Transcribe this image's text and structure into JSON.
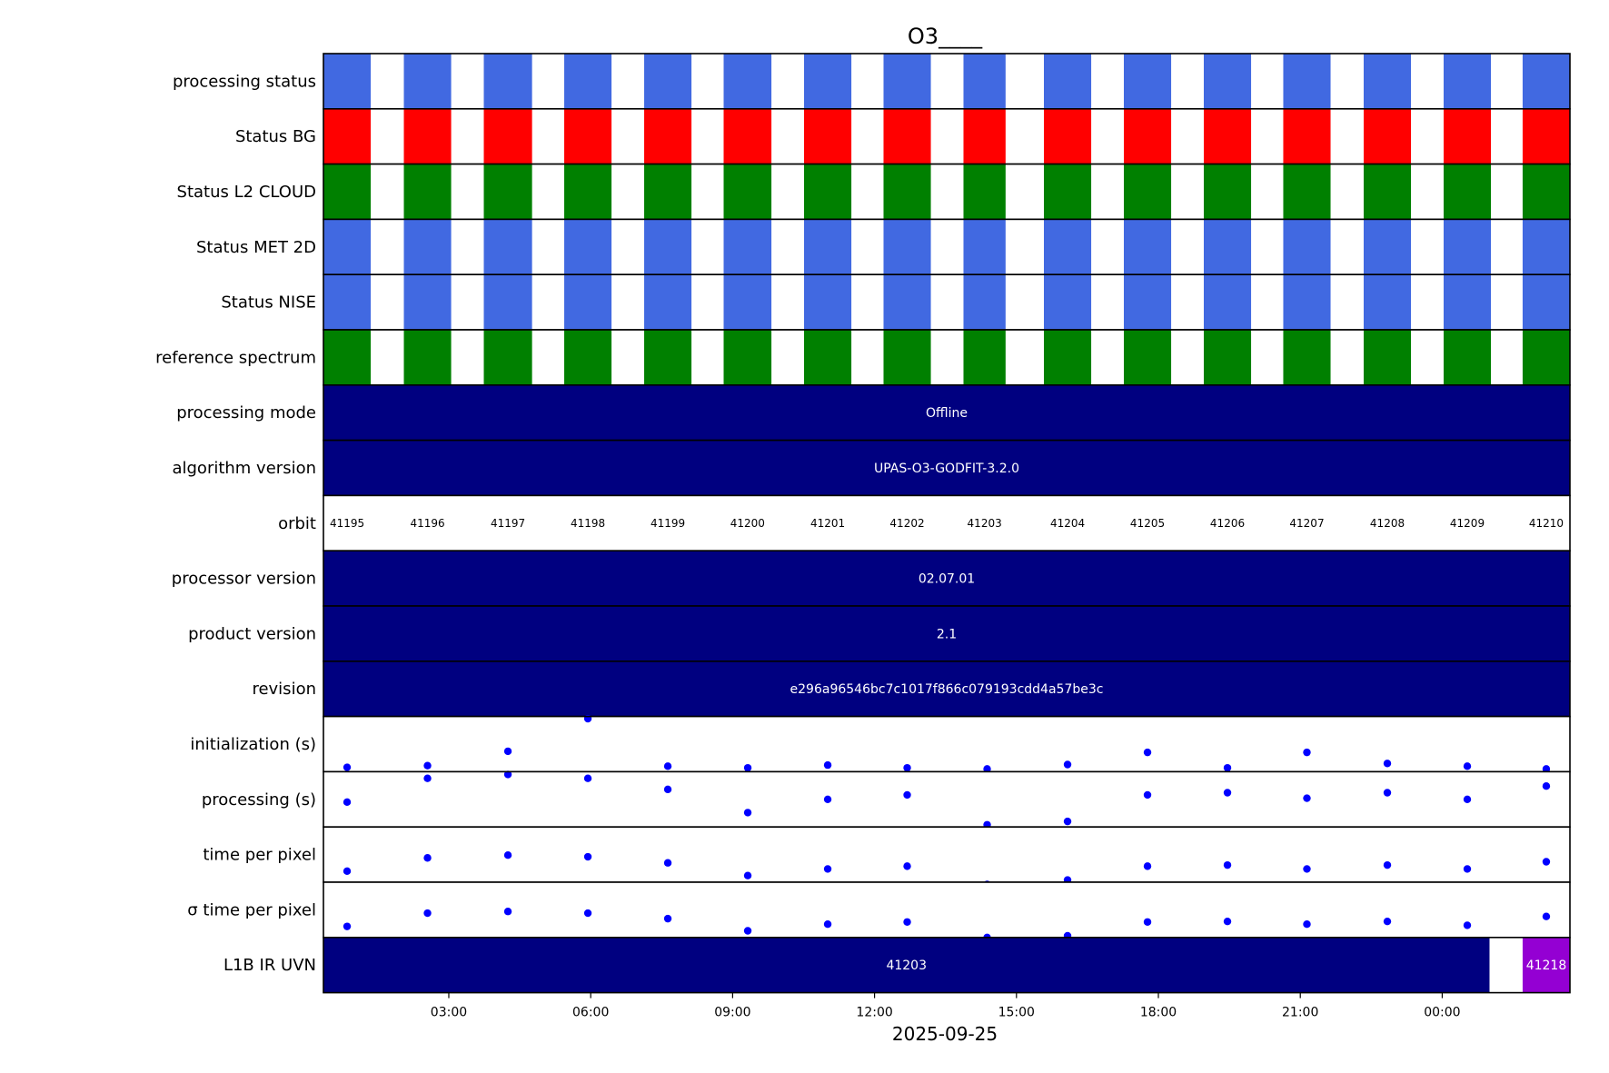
{
  "chart_data": {
    "type": "timeline",
    "title": "O3____",
    "xlabel": "2025-09-25",
    "x_ticks": [
      "03:00",
      "06:00",
      "09:00",
      "12:00",
      "15:00",
      "18:00",
      "21:00",
      "00:00"
    ],
    "x_tick_hours": [
      3,
      6,
      9,
      12,
      15,
      18,
      21,
      24
    ],
    "xlim_hours": [
      0.35,
      26.7
    ],
    "orbits": [
      {
        "id": "41195",
        "start": 0.35,
        "end": 1.35
      },
      {
        "id": "41196",
        "start": 2.05,
        "end": 3.05
      },
      {
        "id": "41197",
        "start": 3.74,
        "end": 4.76
      },
      {
        "id": "41198",
        "start": 5.44,
        "end": 6.44
      },
      {
        "id": "41199",
        "start": 7.13,
        "end": 8.13
      },
      {
        "id": "41200",
        "start": 8.81,
        "end": 9.82
      },
      {
        "id": "41201",
        "start": 10.51,
        "end": 11.51
      },
      {
        "id": "41202",
        "start": 12.19,
        "end": 13.19
      },
      {
        "id": "41203",
        "start": 13.88,
        "end": 14.77
      },
      {
        "id": "41204",
        "start": 15.58,
        "end": 16.58
      },
      {
        "id": "41205",
        "start": 17.27,
        "end": 18.27
      },
      {
        "id": "41206",
        "start": 18.96,
        "end": 19.96
      },
      {
        "id": "41207",
        "start": 20.64,
        "end": 21.64
      },
      {
        "id": "41208",
        "start": 22.34,
        "end": 23.34
      },
      {
        "id": "41209",
        "start": 24.03,
        "end": 25.03
      },
      {
        "id": "41210",
        "start": 25.7,
        "end": 26.7
      }
    ],
    "rows": [
      {
        "label": "processing status",
        "kind": "orbit_blocks",
        "color": "#4169e1"
      },
      {
        "label": "Status BG",
        "kind": "orbit_blocks",
        "color": "#ff0000"
      },
      {
        "label": "Status L2  CLOUD",
        "kind": "orbit_blocks",
        "color": "#008000"
      },
      {
        "label": "Status MET 2D",
        "kind": "orbit_blocks",
        "color": "#4169e1"
      },
      {
        "label": "Status NISE",
        "kind": "orbit_blocks",
        "color": "#4169e1"
      },
      {
        "label": "reference spectrum",
        "kind": "orbit_blocks",
        "color": "#008000"
      },
      {
        "label": "processing mode",
        "kind": "band",
        "color": "#000080",
        "segments": [
          {
            "start": 0.35,
            "end": 26.7,
            "text": "Offline",
            "color": "#000080"
          }
        ]
      },
      {
        "label": "algorithm version",
        "kind": "band",
        "color": "#000080",
        "segments": [
          {
            "start": 0.35,
            "end": 26.7,
            "text": "UPAS-O3-GODFIT-3.2.0",
            "color": "#000080"
          }
        ]
      },
      {
        "label": "orbit",
        "kind": "orbit_labels"
      },
      {
        "label": "processor version",
        "kind": "band",
        "color": "#000080",
        "segments": [
          {
            "start": 0.35,
            "end": 26.7,
            "text": "02.07.01",
            "color": "#000080"
          }
        ]
      },
      {
        "label": "product version",
        "kind": "band",
        "color": "#000080",
        "segments": [
          {
            "start": 0.35,
            "end": 26.7,
            "text": "2.1",
            "color": "#000080"
          }
        ]
      },
      {
        "label": "revision",
        "kind": "band",
        "color": "#000080",
        "segments": [
          {
            "start": 0.35,
            "end": 26.7,
            "text": "e296a96546bc7c1017f866c079193cdd4a57be3c",
            "color": "#000080"
          }
        ]
      },
      {
        "label": "initialization (s)",
        "kind": "scatter",
        "color": "#0000ff",
        "ylim": [
          0,
          1
        ],
        "points": [
          [
            0.85,
            0.08
          ],
          [
            2.55,
            0.11
          ],
          [
            4.25,
            0.37
          ],
          [
            5.94,
            0.96
          ],
          [
            7.63,
            0.1
          ],
          [
            9.32,
            0.07
          ],
          [
            11.01,
            0.12
          ],
          [
            12.69,
            0.07
          ],
          [
            14.38,
            0.05
          ],
          [
            16.08,
            0.13
          ],
          [
            17.77,
            0.35
          ],
          [
            19.46,
            0.07
          ],
          [
            21.14,
            0.35
          ],
          [
            22.84,
            0.15
          ],
          [
            24.53,
            0.1
          ],
          [
            26.2,
            0.05
          ]
        ]
      },
      {
        "label": "processing (s)",
        "kind": "scatter",
        "color": "#0000ff",
        "ylim": [
          0,
          1
        ],
        "points": [
          [
            0.85,
            0.45
          ],
          [
            2.55,
            0.88
          ],
          [
            4.25,
            0.95
          ],
          [
            5.94,
            0.88
          ],
          [
            7.63,
            0.68
          ],
          [
            9.32,
            0.26
          ],
          [
            11.01,
            0.5
          ],
          [
            12.69,
            0.58
          ],
          [
            14.38,
            0.04
          ],
          [
            14.38,
            -0.04
          ],
          [
            16.08,
            0.1
          ],
          [
            17.77,
            0.58
          ],
          [
            19.46,
            0.62
          ],
          [
            21.14,
            0.52
          ],
          [
            22.84,
            0.62
          ],
          [
            24.53,
            0.5
          ],
          [
            26.2,
            0.74
          ]
        ]
      },
      {
        "label": "time per pixel",
        "kind": "scatter",
        "color": "#0000ff",
        "ylim": [
          0,
          1
        ],
        "points": [
          [
            0.85,
            0.2
          ],
          [
            2.55,
            0.44
          ],
          [
            4.25,
            0.49
          ],
          [
            5.94,
            0.46
          ],
          [
            7.63,
            0.35
          ],
          [
            9.32,
            0.12
          ],
          [
            11.01,
            0.24
          ],
          [
            12.69,
            0.29
          ],
          [
            14.38,
            -0.04
          ],
          [
            16.08,
            0.04
          ],
          [
            17.77,
            0.29
          ],
          [
            19.46,
            0.31
          ],
          [
            21.14,
            0.24
          ],
          [
            22.84,
            0.31
          ],
          [
            24.53,
            0.24
          ],
          [
            26.2,
            0.37
          ]
        ]
      },
      {
        "label": "σ time per pixel",
        "kind": "scatter",
        "color": "#0000ff",
        "ylim": [
          0,
          1
        ],
        "points": [
          [
            0.85,
            0.2
          ],
          [
            2.55,
            0.44
          ],
          [
            4.25,
            0.47
          ],
          [
            5.94,
            0.44
          ],
          [
            7.63,
            0.34
          ],
          [
            9.32,
            0.12
          ],
          [
            11.01,
            0.24
          ],
          [
            12.69,
            0.28
          ],
          [
            14.38,
            0.0
          ],
          [
            16.08,
            0.03
          ],
          [
            17.77,
            0.28
          ],
          [
            19.46,
            0.29
          ],
          [
            21.14,
            0.24
          ],
          [
            22.84,
            0.29
          ],
          [
            24.53,
            0.22
          ],
          [
            26.2,
            0.38
          ]
        ]
      },
      {
        "label": "L1B IR UVN",
        "kind": "band",
        "color": "#000080",
        "segments": [
          {
            "start": 0.35,
            "end": 25.0,
            "text": "41203",
            "color": "#000080"
          },
          {
            "start": 25.7,
            "end": 26.7,
            "text": "41218",
            "color": "#9400d3"
          }
        ]
      }
    ]
  }
}
